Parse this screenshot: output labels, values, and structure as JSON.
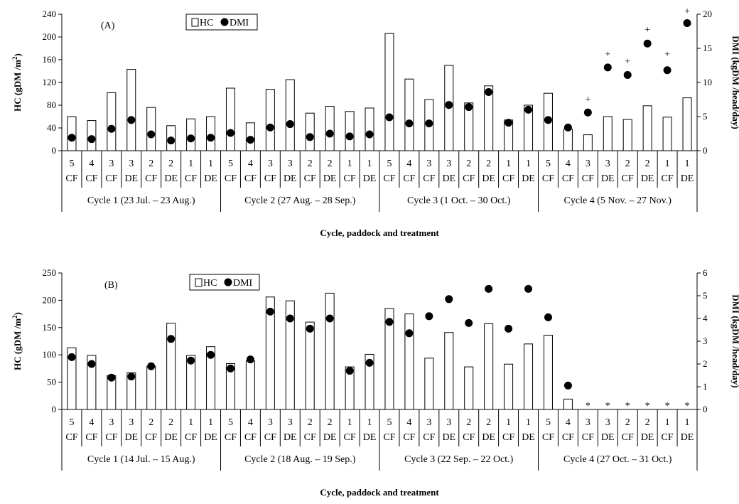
{
  "chart_data": [
    {
      "type": "bar",
      "panel_label": "(A)",
      "xlabel": "Cycle, paddock and treatment",
      "ylabel_left": "HC (gDM /m2)",
      "ylabel_right": "DMI (kgDM /head/day)",
      "ylim_left": [
        0,
        240
      ],
      "ylim_right": [
        0,
        20
      ],
      "yticks_left": [
        "0",
        "40",
        "80",
        "120",
        "160",
        "200",
        "240"
      ],
      "yticks_right": [
        "0",
        "5",
        "10",
        "15",
        "20"
      ],
      "legend": [
        "HC",
        "DMI"
      ],
      "paddocks": [
        "5",
        "4",
        "3",
        "3",
        "2",
        "2",
        "1",
        "1",
        "5",
        "4",
        "3",
        "3",
        "2",
        "2",
        "1",
        "1",
        "5",
        "4",
        "3",
        "3",
        "2",
        "2",
        "1",
        "1",
        "5",
        "4",
        "3",
        "3",
        "2",
        "2",
        "1",
        "1"
      ],
      "treatments": [
        "CF",
        "CF",
        "CF",
        "DE",
        "CF",
        "DE",
        "CF",
        "DE",
        "CF",
        "CF",
        "CF",
        "DE",
        "CF",
        "DE",
        "CF",
        "DE",
        "CF",
        "CF",
        "CF",
        "DE",
        "CF",
        "DE",
        "CF",
        "DE",
        "CF",
        "CF",
        "CF",
        "DE",
        "CF",
        "DE",
        "CF",
        "DE"
      ],
      "cycles": [
        "Cycle 1 (23 Jul. – 23 Aug.)",
        "Cycle 2 (27 Aug. – 28 Sep.)",
        "Cycle 3 (1 Oct. – 30 Oct.)",
        "Cycle 4 (5 Nov. – 27 Nov.)"
      ],
      "series": [
        {
          "name": "HC",
          "kind": "bar",
          "axis": "left",
          "values": [
            60,
            53,
            102,
            143,
            76,
            44,
            56,
            60,
            110,
            49,
            108,
            125,
            66,
            78,
            69,
            75,
            206,
            126,
            90,
            150,
            84,
            114,
            54,
            80,
            101,
            38,
            28,
            60,
            55,
            79,
            59,
            93
          ]
        },
        {
          "name": "DMI",
          "kind": "dot",
          "axis": "right",
          "values": [
            1.9,
            1.7,
            3.2,
            4.5,
            2.4,
            1.5,
            1.8,
            1.9,
            2.6,
            1.6,
            3.4,
            3.9,
            2.0,
            2.5,
            2.1,
            2.4,
            4.9,
            4.0,
            4.0,
            6.7,
            6.4,
            8.6,
            4.1,
            6.0,
            4.5,
            3.4,
            5.6,
            12.2,
            11.1,
            15.7,
            11.8,
            18.7
          ]
        }
      ],
      "annotations": [
        {
          "text": "+",
          "index": 26,
          "value": 7.6
        },
        {
          "text": "+",
          "index": 27,
          "value": 14.2
        },
        {
          "text": "+",
          "index": 28,
          "value": 13.2
        },
        {
          "text": "+",
          "index": 29,
          "value": 17.8
        },
        {
          "text": "+",
          "index": 30,
          "value": 14.2
        },
        {
          "text": "+",
          "index": 31,
          "value": 20.5
        }
      ]
    },
    {
      "type": "bar",
      "panel_label": "(B)",
      "xlabel": "Cycle, paddock and treatment",
      "ylabel_left": "HC (gDM /m2)",
      "ylabel_right": "DMI (kgDM /head/day)",
      "ylim_left": [
        0,
        250
      ],
      "ylim_right": [
        0,
        6
      ],
      "yticks_left": [
        "0",
        "50",
        "100",
        "150",
        "200",
        "250"
      ],
      "yticks_right": [
        "0",
        "1",
        "2",
        "3",
        "4",
        "5",
        "6"
      ],
      "legend": [
        "HC",
        "DMI"
      ],
      "paddocks": [
        "5",
        "4",
        "3",
        "3",
        "2",
        "2",
        "1",
        "1",
        "5",
        "4",
        "3",
        "3",
        "2",
        "2",
        "1",
        "1",
        "5",
        "4",
        "3",
        "3",
        "2",
        "2",
        "1",
        "1",
        "5",
        "4",
        "3",
        "3",
        "2",
        "2",
        "1",
        "1"
      ],
      "treatments": [
        "CF",
        "CF",
        "CF",
        "DE",
        "CF",
        "DE",
        "CF",
        "DE",
        "CF",
        "CF",
        "CF",
        "DE",
        "CF",
        "DE",
        "CF",
        "DE",
        "CF",
        "CF",
        "CF",
        "DE",
        "CF",
        "DE",
        "CF",
        "DE",
        "CF",
        "CF",
        "CF",
        "DE",
        "CF",
        "DE",
        "CF",
        "DE"
      ],
      "cycles": [
        "Cycle 1 (14 Jul. – 15 Aug.)",
        "Cycle 2 (18 Aug. – 19 Sep.)",
        "Cycle 3 (22 Sep. – 22 Oct.)",
        "Cycle 4 (27 Oct. – 31 Oct.)"
      ],
      "series": [
        {
          "name": "HC",
          "kind": "bar",
          "axis": "left",
          "values": [
            113,
            99,
            62,
            67,
            79,
            158,
            99,
            115,
            84,
            89,
            206,
            199,
            160,
            213,
            78,
            101,
            185,
            175,
            94,
            141,
            78,
            157,
            83,
            120,
            136,
            19,
            null,
            null,
            null,
            null,
            null,
            null
          ]
        },
        {
          "name": "DMI",
          "kind": "dot",
          "axis": "right",
          "values": [
            2.3,
            2.0,
            1.4,
            1.45,
            1.9,
            3.1,
            2.15,
            2.4,
            1.8,
            2.2,
            4.3,
            4.0,
            3.55,
            4.0,
            1.7,
            2.05,
            3.85,
            3.35,
            4.1,
            4.85,
            3.8,
            5.3,
            3.55,
            5.3,
            4.05,
            1.05,
            null,
            null,
            null,
            null,
            null,
            null
          ]
        }
      ],
      "annotations": [
        {
          "text": "*",
          "index": 26,
          "value": 0.18
        },
        {
          "text": "*",
          "index": 27,
          "value": 0.18
        },
        {
          "text": "*",
          "index": 28,
          "value": 0.18
        },
        {
          "text": "*",
          "index": 29,
          "value": 0.18
        },
        {
          "text": "*",
          "index": 30,
          "value": 0.18
        },
        {
          "text": "*",
          "index": 31,
          "value": 0.18
        }
      ]
    }
  ]
}
